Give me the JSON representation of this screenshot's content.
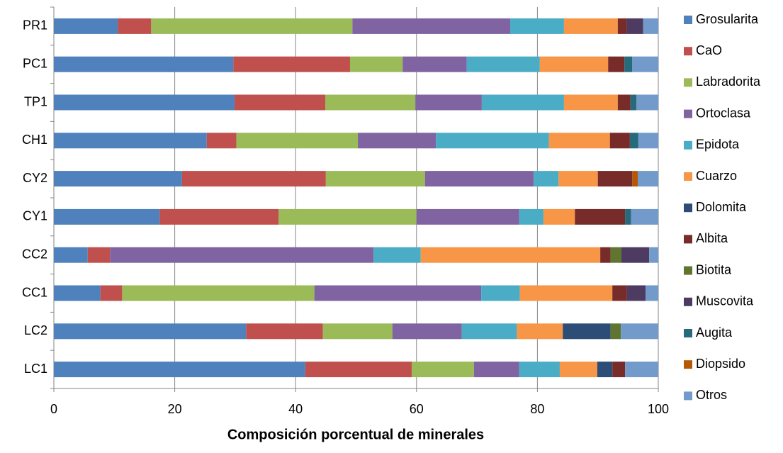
{
  "chart_data": {
    "type": "stacked-bar",
    "orientation": "horizontal",
    "x_label": "Composición porcentual de minerales",
    "categories": [
      "PR1",
      "PC1",
      "TP1",
      "CH1",
      "CY2",
      "CY1",
      "CC2",
      "CC1",
      "LC2",
      "LC1"
    ],
    "xlim": [
      0,
      100
    ],
    "xticks": [
      0,
      20,
      40,
      60,
      80,
      100
    ],
    "grid": true,
    "legend": "right",
    "series": [
      {
        "name": "Grosularita",
        "color": "#4f81bd",
        "values": [
          10.6,
          29.7,
          29.9,
          25.3,
          21.2,
          17.5,
          5.6,
          7.7,
          31.8,
          41.6
        ]
      },
      {
        "name": "CaO",
        "color": "#c0504d",
        "values": [
          5.5,
          19.3,
          15.0,
          4.9,
          23.8,
          19.7,
          3.7,
          3.6,
          12.7,
          17.6
        ]
      },
      {
        "name": "Labradorita",
        "color": "#9bbb59",
        "values": [
          33.3,
          8.7,
          14.9,
          20.1,
          16.4,
          22.8,
          0,
          31.8,
          11.5,
          10.3
        ]
      },
      {
        "name": "Ortoclasa",
        "color": "#8064a2",
        "values": [
          26.1,
          10.6,
          11.0,
          12.9,
          18.0,
          17.0,
          43.6,
          27.6,
          11.5,
          7.5
        ]
      },
      {
        "name": "Epidota",
        "color": "#4bacc6",
        "values": [
          8.9,
          12.1,
          13.6,
          18.7,
          4.1,
          4.0,
          7.8,
          6.4,
          9.1,
          6.7
        ]
      },
      {
        "name": "Cuarzo",
        "color": "#f79646",
        "values": [
          8.9,
          11.3,
          8.9,
          10.1,
          6.5,
          5.2,
          29.7,
          15.3,
          7.6,
          6.2
        ]
      },
      {
        "name": "Dolomita",
        "color": "#2c4d75",
        "values": [
          0,
          0,
          0,
          0,
          0,
          0,
          0,
          0,
          7.9,
          2.5
        ]
      },
      {
        "name": "Albita",
        "color": "#772c2a",
        "values": [
          1.5,
          2.7,
          2.1,
          3.3,
          5.7,
          8.3,
          1.7,
          2.4,
          0,
          2.1
        ]
      },
      {
        "name": "Biotita",
        "color": "#5f7530",
        "values": [
          0,
          0,
          0,
          0,
          0,
          0,
          1.8,
          0,
          1.7,
          0
        ]
      },
      {
        "name": "Muscovita",
        "color": "#4d3b62",
        "values": [
          2.7,
          0,
          0,
          0,
          0,
          0,
          4.6,
          3.1,
          0,
          0
        ]
      },
      {
        "name": "Augita",
        "color": "#276a7c",
        "values": [
          0,
          1.3,
          1.0,
          1.4,
          0,
          1.0,
          0,
          0,
          0,
          0
        ]
      },
      {
        "name": "Diopsido",
        "color": "#b65708",
        "values": [
          0,
          0,
          0,
          0,
          0.9,
          0,
          0,
          0,
          0,
          0
        ]
      },
      {
        "name": "Otros",
        "color": "#729aca",
        "values": [
          2.5,
          4.3,
          3.6,
          3.3,
          3.4,
          4.5,
          1.5,
          2.1,
          6.2,
          5.5
        ]
      }
    ]
  }
}
